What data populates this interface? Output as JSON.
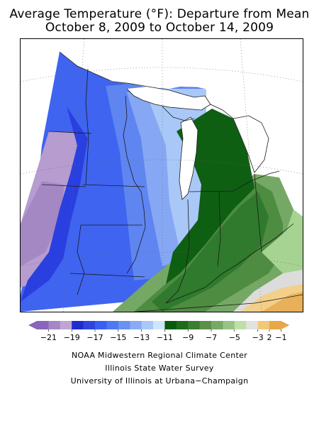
{
  "title": "Average Temperature (°F): Departure from Mean",
  "subtitle": "October 8, 2009 to October 14, 2009",
  "legend": {
    "colors": [
      "#8866bb",
      "#a488c4",
      "#bfa6d2",
      "#1f2bd0",
      "#2f45e0",
      "#3a5ff2",
      "#4d78f2",
      "#6a90f2",
      "#8aaaf4",
      "#a9c8f7",
      "#cfe5fb",
      "#075a0b",
      "#1e6b1c",
      "#3b7d32",
      "#5a9049",
      "#78a865",
      "#97c484",
      "#bde0a8",
      "#e2e2e2",
      "#f0c877",
      "#e8a84a"
    ],
    "labels": [
      "−21",
      "−19",
      "−17",
      "−15",
      "−13",
      "−11",
      "−9",
      "−7",
      "−5",
      "−3",
      "−1",
      "2"
    ]
  },
  "credits": [
    "NOAA Midwestern Regional Climate Center",
    "Illinois State Water Survey",
    "University of Illinois at Urbana−Champaign"
  ],
  "map_colors": {
    "purple": "#b69ccf",
    "purple_dark": "#a488c4",
    "blue_deep": "#2a3fe0",
    "blue": "#3f64f0",
    "blue_mid": "#5f85f1",
    "blue_light": "#86a8f4",
    "blue_pale": "#a9c8f7",
    "blue_ice": "#d6ebfb",
    "green_dark": "#0f5f13",
    "green": "#2f7a2c",
    "green_mid": "#4e8c42",
    "green_light": "#76a865",
    "green_pale": "#a6d391",
    "gray": "#dcdcdc",
    "orange_light": "#f2d08a",
    "orange": "#e9b05a"
  }
}
